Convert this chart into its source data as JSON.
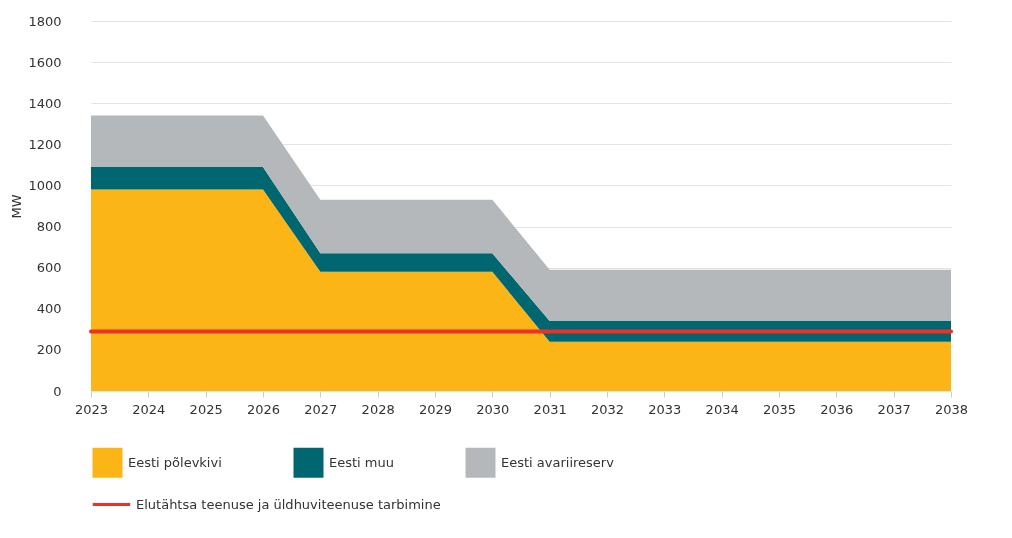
{
  "chart_data": {
    "type": "area",
    "stacked": true,
    "ylabel": "MW",
    "categories": [
      "2023",
      "2024",
      "2025",
      "2026",
      "2027",
      "2028",
      "2029",
      "2030",
      "2031",
      "2032",
      "2033",
      "2034",
      "2035",
      "2036",
      "2037",
      "2038"
    ],
    "series": [
      {
        "name": "Eesti põlevkivi",
        "color": "#fbb516",
        "values": [
          980,
          980,
          980,
          980,
          580,
          580,
          580,
          580,
          240,
          240,
          240,
          240,
          240,
          240,
          240,
          240
        ]
      },
      {
        "name": "Eesti muu",
        "color": "#006670",
        "values": [
          110,
          110,
          110,
          110,
          90,
          90,
          90,
          90,
          100,
          100,
          100,
          100,
          100,
          100,
          100,
          100
        ]
      },
      {
        "name": "Eesti avariireserv",
        "color": "#b5b8bb",
        "values": [
          250,
          250,
          250,
          250,
          260,
          260,
          260,
          260,
          250,
          250,
          250,
          250,
          250,
          250,
          250,
          250
        ]
      },
      {
        "name": "Elutähtsa teenuse ja üldhuviteenuse tarbimine",
        "type": "line",
        "color": "#ee3124",
        "values": [
          290,
          290,
          290,
          290,
          290,
          290,
          290,
          290,
          290,
          290,
          290,
          290,
          290,
          290,
          290,
          290
        ]
      }
    ],
    "ylim": [
      0,
      1800
    ],
    "yticks": [
      0,
      200,
      400,
      600,
      800,
      1000,
      1200,
      1400,
      1600,
      1800
    ],
    "grid": "y",
    "legend": "bottom"
  }
}
